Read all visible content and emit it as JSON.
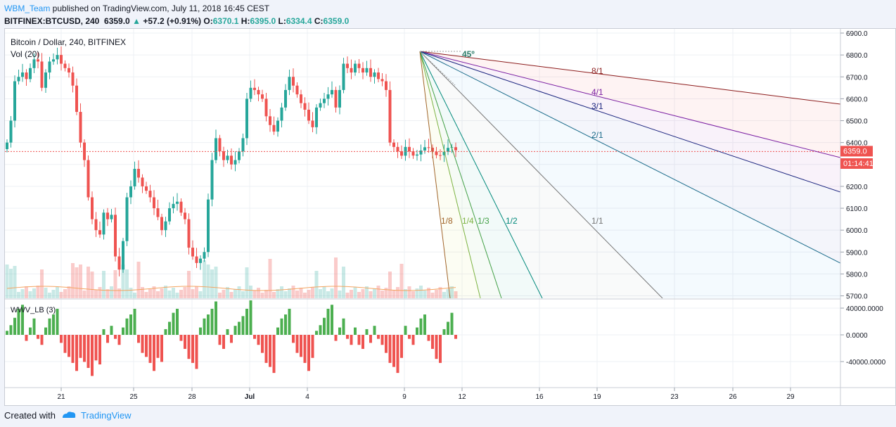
{
  "header": {
    "user": "WBM_Team",
    "published": " published on TradingView.com, July 11, 2018 16:45 CEST",
    "symbol": "BITFINEX:BTCUSD, 240",
    "last": "6359.0",
    "change_arrow": "▲",
    "change": "+57.2 (+0.91%)",
    "o_label": "O:",
    "o": "6370.1",
    "h_label": "H:",
    "h": "6395.0",
    "l_label": "L:",
    "l": "6334.4",
    "c_label": "C:",
    "c": "6359.0"
  },
  "legend": {
    "title": "Bitcoin / Dollar, 240, BITFINEX",
    "vol": "Vol (20)",
    "wwv": "WWV_LB (3)"
  },
  "price_axis": {
    "ticks": [
      "6900.0",
      "6800.0",
      "6700.0",
      "6600.0",
      "6500.0",
      "6400.0",
      "6300.0",
      "6200.0",
      "6100.0",
      "6000.0",
      "5900.0",
      "5800.0",
      "5700.0"
    ],
    "last_price": "6359.0",
    "countdown": "01:14:41"
  },
  "osc_axis": {
    "ticks": [
      "40000.0000",
      "0.0000",
      "-40000.0000"
    ]
  },
  "time_axis": {
    "ticks": [
      "21",
      "25",
      "28",
      "Jul",
      "4",
      "9",
      "12",
      "16",
      "19",
      "23",
      "26",
      "29"
    ]
  },
  "gann_fan": {
    "angle_label": "45º",
    "labels": [
      "8/1",
      "4/1",
      "3/1",
      "2/1",
      "1/1",
      "1/2",
      "1/3",
      "1/4",
      "1/8"
    ]
  },
  "colors": {
    "up": "#26a69a",
    "down": "#ef5350",
    "osc_up": "#4caf50",
    "osc_down": "#ef5350",
    "brand": "#2196f3",
    "price_line": "#ef5350"
  },
  "footer": {
    "created": "Created with",
    "brand": "TradingView"
  }
}
